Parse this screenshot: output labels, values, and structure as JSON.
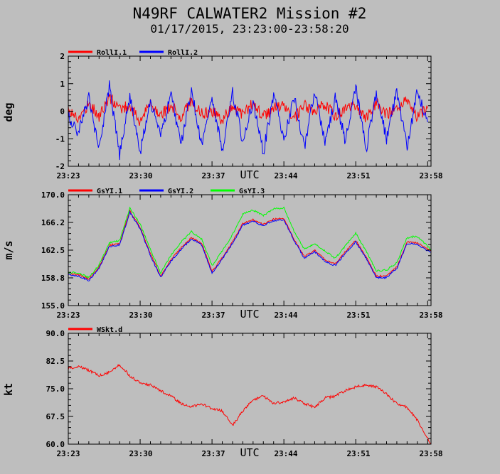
{
  "page": {
    "title": "N49RF CALWATER2 Mission #2",
    "subtitle": "01/17/2015, 23:23:00-23:58:20"
  },
  "colors": {
    "background": "#bebebe",
    "axes": "#000000",
    "red": "#ff0000",
    "blue": "#0000ff",
    "green": "#00ff00"
  },
  "chart_data": [
    {
      "type": "line",
      "ylabel": "deg",
      "xlabel": "UTC",
      "ylim": [
        -2,
        2
      ],
      "yticks": [
        "-2",
        "-1",
        "0",
        "1",
        "2"
      ],
      "xticks": [
        "23:23",
        "23:30",
        "23:37",
        "23:44",
        "23:51",
        "23:58"
      ],
      "xlim_minutes": [
        0,
        35.33
      ],
      "legend": "top-left",
      "series": [
        {
          "name": "RollI.1",
          "color": "#ff0000",
          "x": [
            0,
            1,
            2,
            3,
            4,
            5,
            6,
            7,
            8,
            9,
            10,
            11,
            12,
            13,
            14,
            15,
            16,
            17,
            18,
            19,
            20,
            21,
            22,
            23,
            24,
            25,
            26,
            27,
            28,
            29,
            30,
            31,
            32,
            33,
            34,
            35
          ],
          "values": [
            0.1,
            -0.3,
            0.3,
            -0.2,
            0.5,
            0.1,
            0.2,
            -0.4,
            0.3,
            -0.1,
            0.2,
            -0.2,
            0.4,
            -0.1,
            0.0,
            -0.3,
            0.2,
            -0.1,
            0.3,
            -0.2,
            0.1,
            0.2,
            -0.3,
            0.2,
            -0.1,
            0.3,
            -0.2,
            0.1,
            0.2,
            -0.3,
            0.3,
            -0.1,
            0.0,
            0.4,
            -0.2,
            0.1
          ]
        },
        {
          "name": "RollI.2",
          "color": "#0000ff",
          "x": [
            0,
            1,
            2,
            3,
            4,
            5,
            6,
            7,
            8,
            9,
            10,
            11,
            12,
            13,
            14,
            15,
            16,
            17,
            18,
            19,
            20,
            21,
            22,
            23,
            24,
            25,
            26,
            27,
            28,
            29,
            30,
            31,
            32,
            33,
            34,
            35
          ],
          "values": [
            -0.2,
            -0.8,
            0.5,
            -1.4,
            0.9,
            -1.6,
            0.6,
            -1.5,
            0.4,
            -0.9,
            0.6,
            -1.2,
            0.8,
            -1.3,
            0.5,
            -1.4,
            0.7,
            -1.1,
            0.4,
            -1.5,
            0.6,
            -1.0,
            0.5,
            -1.3,
            0.8,
            -1.2,
            0.5,
            -1.1,
            0.9,
            -1.4,
            0.6,
            -1.0,
            0.7,
            -1.3,
            0.8,
            -0.4
          ]
        }
      ]
    },
    {
      "type": "line",
      "ylabel": "m/s",
      "xlabel": "UTC",
      "ylim": [
        155.0,
        170.0
      ],
      "yticks": [
        "155.0",
        "158.8",
        "162.5",
        "166.2",
        "170.0"
      ],
      "xticks": [
        "23:23",
        "23:30",
        "23:37",
        "23:44",
        "23:51",
        "23:58"
      ],
      "xlim_minutes": [
        0,
        35.33
      ],
      "legend": "top-left",
      "series": [
        {
          "name": "GsYI.1",
          "color": "#ff0000",
          "x": [
            0,
            1,
            2,
            3,
            4,
            5,
            6,
            7,
            8,
            9,
            10,
            11,
            12,
            13,
            14,
            15,
            16,
            17,
            18,
            19,
            20,
            21,
            22,
            23,
            24,
            25,
            26,
            27,
            28,
            29,
            30,
            31,
            32,
            33,
            34,
            35.3
          ],
          "values": [
            159.3,
            159.2,
            158.6,
            160.2,
            163.2,
            163.4,
            167.8,
            165.6,
            162.0,
            159.0,
            161.2,
            162.8,
            164.2,
            163.4,
            159.6,
            161.5,
            163.6,
            166.1,
            166.6,
            166.0,
            166.7,
            166.8,
            164.0,
            161.6,
            162.5,
            161.2,
            160.6,
            162.3,
            163.8,
            161.6,
            159.0,
            159.0,
            160.2,
            163.6,
            163.5,
            162.4
          ]
        },
        {
          "name": "GsYI.2",
          "color": "#0000ff",
          "x": [
            0,
            1,
            2,
            3,
            4,
            5,
            6,
            7,
            8,
            9,
            10,
            11,
            12,
            13,
            14,
            15,
            16,
            17,
            18,
            19,
            20,
            21,
            22,
            23,
            24,
            25,
            26,
            27,
            28,
            29,
            30,
            31,
            32,
            33,
            34,
            35.3
          ],
          "values": [
            159.2,
            159.0,
            158.4,
            160.0,
            163.0,
            163.2,
            167.6,
            165.4,
            161.8,
            158.8,
            161.0,
            162.6,
            164.0,
            163.2,
            159.4,
            161.3,
            163.4,
            165.9,
            166.4,
            165.8,
            166.5,
            166.6,
            163.8,
            161.4,
            162.3,
            161.0,
            160.4,
            162.1,
            163.6,
            161.4,
            158.8,
            158.8,
            160.0,
            163.4,
            163.3,
            162.2
          ]
        },
        {
          "name": "GsYI.3",
          "color": "#00ff00",
          "x": [
            0,
            1,
            2,
            3,
            4,
            5,
            6,
            7,
            8,
            9,
            10,
            11,
            12,
            13,
            14,
            15,
            16,
            17,
            18,
            19,
            20,
            21,
            22,
            23,
            24,
            25,
            26,
            27,
            28,
            29,
            30,
            31,
            32,
            33,
            34,
            35.3
          ],
          "values": [
            159.5,
            159.4,
            158.8,
            160.5,
            163.5,
            163.8,
            168.2,
            166.0,
            162.6,
            159.4,
            161.8,
            163.6,
            165.0,
            164.0,
            160.4,
            162.4,
            164.6,
            167.4,
            167.9,
            167.2,
            168.1,
            168.2,
            165.0,
            162.6,
            163.4,
            162.4,
            161.4,
            163.1,
            164.8,
            162.4,
            159.7,
            159.8,
            160.8,
            164.2,
            164.4,
            162.6
          ]
        }
      ]
    },
    {
      "type": "line",
      "ylabel": "kt",
      "xlabel": "UTC",
      "ylim": [
        60.0,
        90.0
      ],
      "yticks": [
        "60.0",
        "67.5",
        "75.0",
        "82.5",
        "90.0"
      ],
      "xticks": [
        "23:23",
        "23:30",
        "23:37",
        "23:44",
        "23:51",
        "23:58"
      ],
      "xlim_minutes": [
        0,
        35.33
      ],
      "legend": "top-left",
      "series": [
        {
          "name": "WSkt.d",
          "color": "#ff0000",
          "x": [
            0,
            1,
            2,
            3,
            4,
            5,
            6,
            7,
            8,
            9,
            10,
            11,
            12,
            13,
            14,
            15,
            16,
            17,
            18,
            19,
            20,
            21,
            22,
            23,
            24,
            25,
            26,
            27,
            28,
            29,
            30,
            31,
            32,
            33,
            34,
            35.3
          ],
          "values": [
            80.5,
            81.0,
            80.0,
            78.5,
            79.5,
            81.5,
            78.5,
            76.5,
            76.0,
            74.5,
            73.0,
            71.0,
            70.0,
            71.0,
            69.5,
            69.0,
            65.0,
            69.0,
            72.0,
            73.0,
            71.0,
            71.5,
            72.5,
            71.0,
            70.0,
            72.5,
            73.0,
            74.5,
            75.5,
            76.0,
            75.5,
            73.5,
            71.0,
            70.0,
            66.5,
            60.0
          ]
        }
      ]
    }
  ]
}
